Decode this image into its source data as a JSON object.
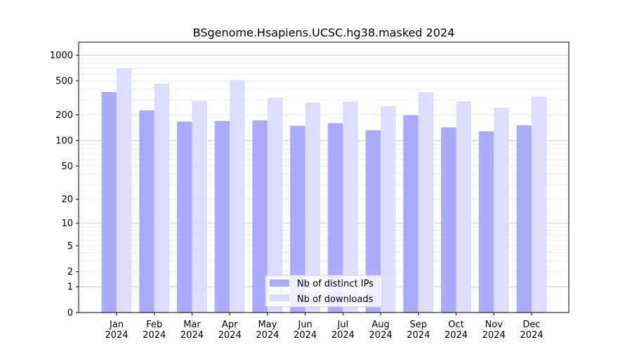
{
  "chart_data": {
    "type": "bar",
    "title": "BSgenome.Hsapiens.UCSC.hg38.masked 2024",
    "xlabel": "",
    "ylabel": "",
    "yscale": "log(1+y)",
    "ylim": [
      0,
      1300
    ],
    "yticks": [
      0,
      1,
      2,
      5,
      10,
      20,
      50,
      100,
      200,
      500,
      1000
    ],
    "grid": true,
    "legend_position": "bottom-center",
    "categories": [
      "Jan\n2024",
      "Feb\n2024",
      "Mar\n2024",
      "Apr\n2024",
      "May\n2024",
      "Jun\n2024",
      "Jul\n2024",
      "Aug\n2024",
      "Sep\n2024",
      "Oct\n2024",
      "Nov\n2024",
      "Dec\n2024"
    ],
    "series": [
      {
        "name": "Nb of distinct IPs",
        "color": "#aaaaff",
        "values": [
          370,
          226,
          167,
          170,
          173,
          149,
          160,
          132,
          198,
          143,
          128,
          151
        ]
      },
      {
        "name": "Nb of downloads",
        "color": "#ddddff",
        "values": [
          703,
          464,
          294,
          510,
          318,
          278,
          288,
          253,
          369,
          288,
          243,
          329
        ]
      }
    ]
  }
}
